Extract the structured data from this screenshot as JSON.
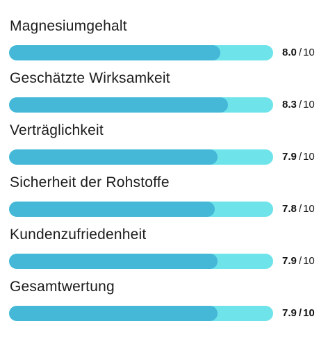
{
  "ratings": [
    {
      "label": "Magnesiumgehalt",
      "value": "8.0",
      "max": "10",
      "fraction": 0.8
    },
    {
      "label": "Geschätzte Wirksamkeit",
      "value": "8.3",
      "max": "10",
      "fraction": 0.83
    },
    {
      "label": "Verträglichkeit",
      "value": "7.9",
      "max": "10",
      "fraction": 0.79
    },
    {
      "label": "Sicherheit der Rohstoffe",
      "value": "7.8",
      "max": "10",
      "fraction": 0.78
    },
    {
      "label": "Kundenzufriedenheit",
      "value": "7.9",
      "max": "10",
      "fraction": 0.79
    },
    {
      "label": "Gesamtwertung",
      "value": "7.9",
      "max": "10",
      "fraction": 0.79
    }
  ],
  "separator": "/",
  "colors": {
    "bar_track": "#6ee3ea",
    "bar_fill": "#45b8d8",
    "text": "#1c1c1c"
  }
}
